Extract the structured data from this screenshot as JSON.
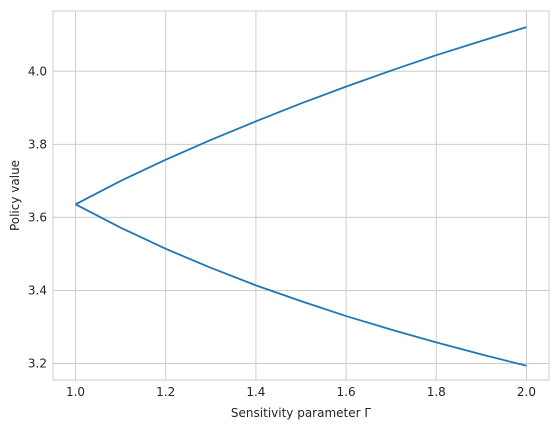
{
  "chart_data": {
    "type": "line",
    "title": "",
    "xlabel": "Sensitivity parameter Γ",
    "ylabel": "Policy value",
    "xlim": [
      0.95,
      2.05
    ],
    "ylim": [
      3.155,
      4.165
    ],
    "x_ticks": [
      1.0,
      1.2,
      1.4,
      1.6,
      1.8,
      2.0
    ],
    "x_tick_labels": [
      "1.0",
      "1.2",
      "1.4",
      "1.6",
      "1.8",
      "2.0"
    ],
    "y_ticks": [
      3.2,
      3.4,
      3.6,
      3.8,
      4.0
    ],
    "y_tick_labels": [
      "3.2",
      "3.4",
      "3.6",
      "3.8",
      "4.0"
    ],
    "grid": true,
    "legend": "none",
    "series": [
      {
        "color": "#1f77b4",
        "x": [
          1.0,
          1.1,
          1.2,
          1.3,
          1.4,
          1.5,
          1.6,
          1.7,
          1.8,
          1.9,
          2.0
        ],
        "y": [
          3.636,
          3.7,
          3.758,
          3.812,
          3.863,
          3.912,
          3.958,
          4.002,
          4.044,
          4.083,
          4.121
        ]
      },
      {
        "color": "#1f77b4",
        "x": [
          1.0,
          1.1,
          1.2,
          1.3,
          1.4,
          1.5,
          1.6,
          1.7,
          1.8,
          1.9,
          2.0
        ],
        "y": [
          3.636,
          3.572,
          3.514,
          3.462,
          3.414,
          3.371,
          3.33,
          3.293,
          3.258,
          3.225,
          3.194
        ]
      }
    ]
  }
}
